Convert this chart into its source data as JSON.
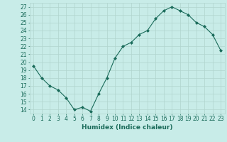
{
  "x": [
    0,
    1,
    2,
    3,
    4,
    5,
    6,
    7,
    8,
    9,
    10,
    11,
    12,
    13,
    14,
    15,
    16,
    17,
    18,
    19,
    20,
    21,
    22,
    23
  ],
  "y": [
    19.5,
    18.0,
    17.0,
    16.5,
    15.5,
    14.0,
    14.3,
    13.8,
    16.0,
    18.0,
    20.5,
    22.0,
    22.5,
    23.5,
    24.0,
    25.5,
    26.5,
    27.0,
    26.5,
    26.0,
    25.0,
    24.5,
    23.5,
    21.5
  ],
  "line_color": "#1a6b5a",
  "marker": "D",
  "marker_size": 2.0,
  "bg_color": "#c8ece8",
  "grid_color": "#b0d4ce",
  "xlabel": "Humidex (Indice chaleur)",
  "ylabel_ticks": [
    14,
    15,
    16,
    17,
    18,
    19,
    20,
    21,
    22,
    23,
    24,
    25,
    26,
    27
  ],
  "ylim": [
    13.5,
    27.5
  ],
  "xlim": [
    -0.5,
    23.5
  ],
  "tick_color": "#1a6b5a",
  "label_color": "#1a6b5a",
  "font_size_label": 6.5,
  "font_size_tick": 5.5,
  "linewidth": 0.8
}
